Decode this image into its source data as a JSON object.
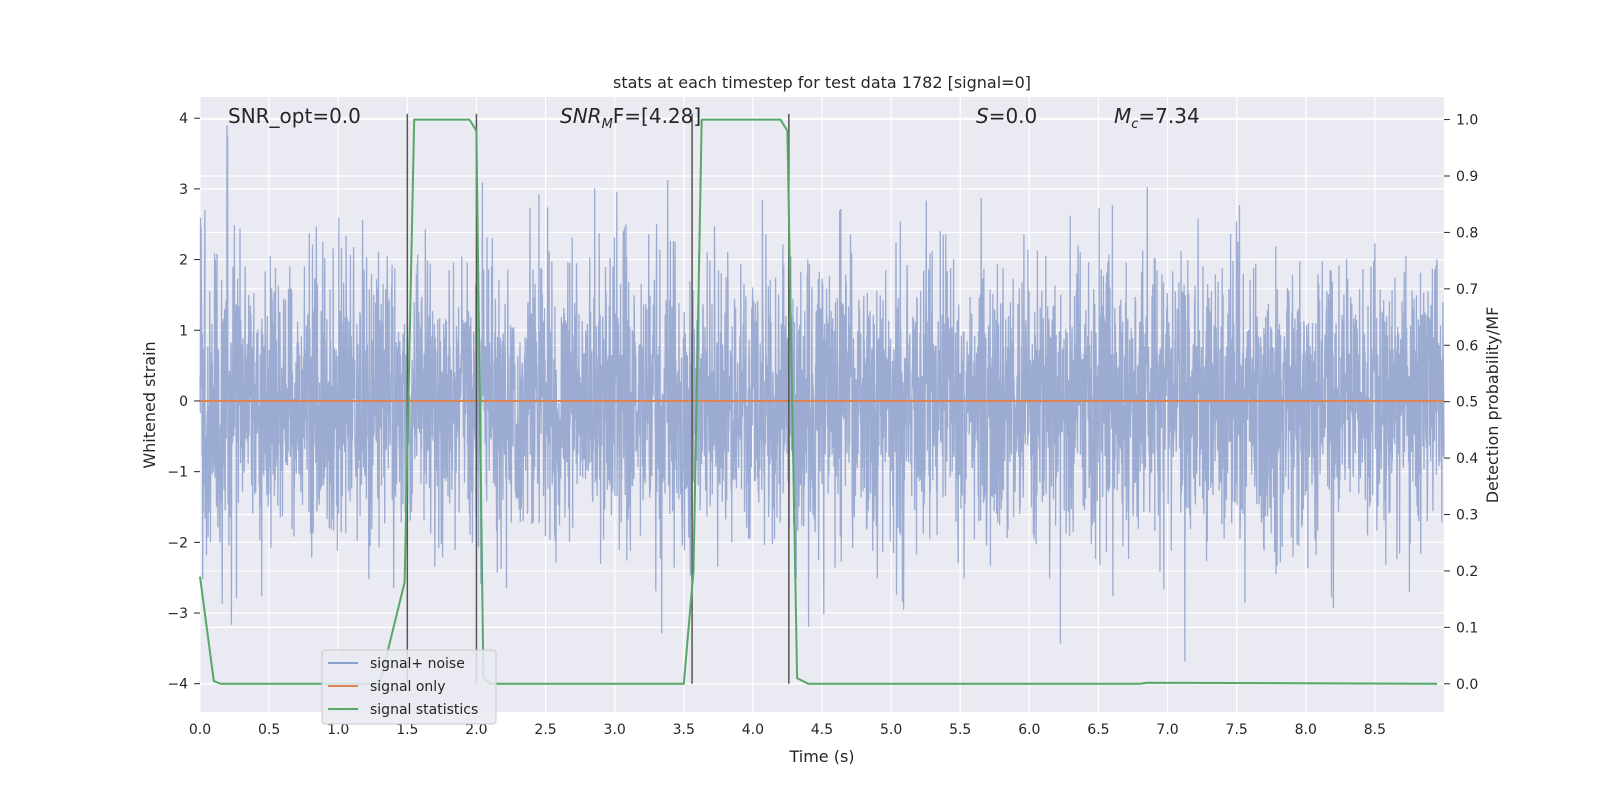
{
  "chart_data": {
    "type": "line",
    "title": "stats at each timestep for test data 1782 [signal=0]",
    "xlabel": "Time (s)",
    "ylabel_left": "Whitened strain",
    "ylabel_right": "Detection probability/MF",
    "xlim": [
      0,
      9
    ],
    "ylim_left": [
      -4.4,
      4.3
    ],
    "ylim_right": [
      -0.05,
      1.04
    ],
    "grid": true,
    "xticks": [
      "0.0",
      "0.5",
      "1.0",
      "1.5",
      "2.0",
      "2.5",
      "3.0",
      "3.5",
      "4.0",
      "4.5",
      "5.0",
      "5.5",
      "6.0",
      "6.5",
      "7.0",
      "7.5",
      "8.0",
      "8.5"
    ],
    "yticks_left": [
      "4",
      "3",
      "2",
      "1",
      "0",
      "−1",
      "−2",
      "−3",
      "−4"
    ],
    "yticks_left_values": [
      4,
      3,
      2,
      1,
      0,
      -1,
      -2,
      -3,
      -4
    ],
    "yticks_right": [
      "1.0",
      "0.9",
      "0.8",
      "0.7",
      "0.6",
      "0.5",
      "0.4",
      "0.3",
      "0.2",
      "0.1",
      "0.0"
    ],
    "yticks_right_values": [
      1.0,
      0.9,
      0.8,
      0.7,
      0.6,
      0.5,
      0.4,
      0.3,
      0.2,
      0.1,
      0.0
    ],
    "annotations": {
      "snr_opt": "SNR_opt=0.0",
      "snr_mf_prefix": "SNR",
      "snr_mf_sub": "M",
      "snr_mf_suffix": "F=[4.28]",
      "s_prefix": "S",
      "s_suffix": "=0.0",
      "mc_prefix": "M",
      "mc_sub": "c",
      "mc_suffix": "=7.34"
    },
    "legend": {
      "placement": "lower-left",
      "entries": [
        "signal+ noise",
        "signal only",
        "signal statistics"
      ]
    },
    "series": [
      {
        "name": "signal+ noise",
        "axis": "left",
        "color": "#8da0cb",
        "description_std": 1.0,
        "t_range": [
          0,
          9
        ],
        "peak_max": 3.9,
        "peak_min": -3.7
      },
      {
        "name": "signal only",
        "axis": "left",
        "color": "#dd8452",
        "x": [
          0,
          9
        ],
        "y": [
          0,
          0
        ]
      },
      {
        "name": "signal statistics",
        "axis": "right",
        "color": "#55a868",
        "x": [
          0,
          0.1,
          0.15,
          1.3,
          1.48,
          1.55,
          1.95,
          2.0,
          2.05,
          2.1,
          3.5,
          3.57,
          3.63,
          4.2,
          4.25,
          4.32,
          4.4,
          6.8,
          6.85,
          8.95
        ],
        "y": [
          0.19,
          0.005,
          0.0,
          0.0,
          0.18,
          1.0,
          1.0,
          0.98,
          0.01,
          0.0,
          0.0,
          0.2,
          1.0,
          1.0,
          0.98,
          0.01,
          0.0,
          0.0,
          0.002,
          0.0
        ]
      }
    ],
    "detection_markers_x": [
      1.5,
      2.0,
      3.56,
      4.26
    ]
  },
  "colors": {
    "plot_bg": "#eaeaf2",
    "grid": "#ffffff",
    "noise": "#8da0cb",
    "signal": "#dd8452",
    "stats": "#55a868",
    "marker": "#555555"
  }
}
